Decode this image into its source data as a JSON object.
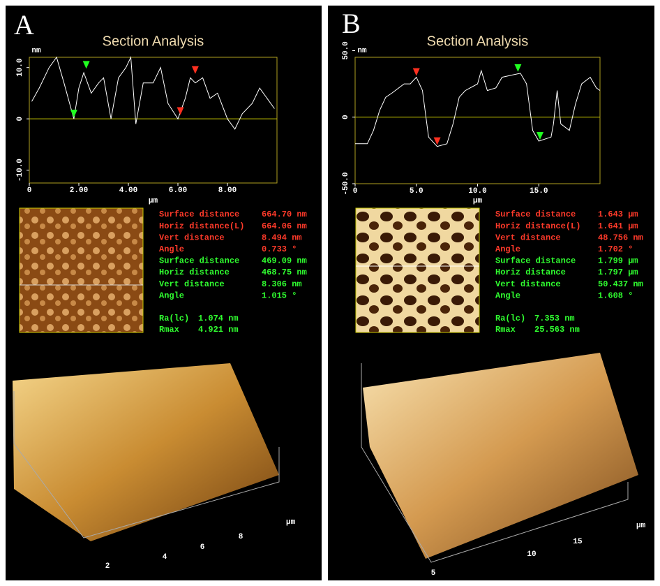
{
  "chart_data": [
    {
      "type": "line",
      "panel_label": "A",
      "title": "Section Analysis",
      "y_label": "nm",
      "x_label": "µm",
      "color": "#ffffff",
      "x": [
        0.1,
        0.4,
        0.8,
        1.1,
        1.4,
        1.8,
        2.0,
        2.2,
        2.5,
        2.8,
        3.0,
        3.3,
        3.6,
        3.9,
        4.1,
        4.3,
        4.6,
        5.0,
        5.3,
        5.6,
        6.0,
        6.3,
        6.5,
        6.7,
        7.0,
        7.3,
        7.6,
        8.0,
        8.3,
        8.6,
        9.0,
        9.3,
        9.6,
        9.9
      ],
      "values": [
        3.4,
        6,
        10,
        12,
        7,
        0,
        6,
        9,
        5,
        7,
        8,
        0,
        8,
        10,
        12,
        -1,
        7,
        7,
        10,
        3,
        0,
        4,
        8,
        7,
        8,
        4,
        5,
        0,
        -2,
        1,
        3,
        6,
        4,
        2
      ],
      "xlim": [
        0,
        10
      ],
      "ylim": [
        -12.5,
        12
      ],
      "xticks": [
        0,
        {
          "value": 2,
          "label": "2.00"
        },
        {
          "value": 4,
          "label": "4.00"
        },
        {
          "value": 6,
          "label": "6.00"
        },
        {
          "value": 8,
          "label": "8.00"
        }
      ],
      "yticks": [
        {
          "value": -10,
          "label": "-10.0"
        },
        0,
        {
          "value": 10,
          "label": "10.0"
        }
      ],
      "cursors": [
        {
          "x": 1.8,
          "y": 0,
          "color": "#20ff20"
        },
        {
          "x": 2.3,
          "y": 9.5,
          "color": "#20ff20"
        },
        {
          "x": 6.1,
          "y": 0.5,
          "color": "#ff3020"
        },
        {
          "x": 6.7,
          "y": 8.5,
          "color": "#ff3020"
        }
      ],
      "measurements": [
        {
          "label": "Surface distance",
          "value": "664.70 nm",
          "color": "#ff3a2a"
        },
        {
          "label": "Horiz distance(L)",
          "value": "664.06 nm",
          "color": "#ff3a2a"
        },
        {
          "label": "Vert distance",
          "value": "8.494 nm",
          "color": "#ff3a2a"
        },
        {
          "label": "Angle",
          "value": "0.733 °",
          "color": "#ff3a2a"
        },
        {
          "label": "Surface distance",
          "value": "469.09 nm",
          "color": "#30ff30"
        },
        {
          "label": "Horiz distance",
          "value": "468.75 nm",
          "color": "#30ff30"
        },
        {
          "label": "Vert distance",
          "value": "8.306 nm",
          "color": "#30ff30"
        },
        {
          "label": "Angle",
          "value": "1.015 °",
          "color": "#30ff30"
        }
      ],
      "roughness": [
        {
          "label": "Ra(lc)",
          "value": "1.074 nm"
        },
        {
          "label": "Rmax",
          "value": "4.921 nm"
        }
      ],
      "surface_ticks": [
        "2",
        "4",
        "6",
        "8"
      ],
      "surface_unit": "µm"
    },
    {
      "type": "line",
      "panel_label": "B",
      "title": "Section Analysis",
      "y_label": "nm",
      "x_label": "µm",
      "color": "#ffffff",
      "x": [
        0,
        1,
        1.5,
        2,
        2.5,
        3,
        4,
        4.5,
        5,
        5.5,
        6,
        6.7,
        7.5,
        8,
        8.5,
        9,
        10,
        10.3,
        10.8,
        11.5,
        12,
        13,
        13.5,
        14,
        14.5,
        15,
        16,
        16.2,
        16.5,
        16.8,
        17.5,
        18,
        18.5,
        19.2,
        19.7,
        20
      ],
      "values": [
        -20,
        -20,
        -10,
        5,
        15,
        18,
        25,
        25,
        30,
        20,
        -15,
        -22,
        -20,
        -5,
        15,
        20,
        25,
        35,
        20,
        22,
        30,
        32,
        33,
        25,
        -10,
        -18,
        -15,
        -5,
        20,
        -5,
        -10,
        10,
        25,
        30,
        22,
        20
      ],
      "xlim": [
        0,
        20
      ],
      "ylim": [
        -50,
        45
      ],
      "xticks": [
        0,
        {
          "value": 5,
          "label": "5.0"
        },
        {
          "value": 10,
          "label": "10.0"
        },
        {
          "value": 15,
          "label": "15.0"
        }
      ],
      "yticks": [
        {
          "value": -50,
          "label": "-50.0"
        },
        0,
        {
          "value": 50,
          "label": "50.0"
        }
      ],
      "cursors": [
        {
          "x": 5.0,
          "y": 30,
          "color": "#ff3020"
        },
        {
          "x": 6.7,
          "y": -22,
          "color": "#ff3020"
        },
        {
          "x": 13.3,
          "y": 33,
          "color": "#20ff20"
        },
        {
          "x": 15.1,
          "y": -18,
          "color": "#20ff20"
        }
      ],
      "measurements": [
        {
          "label": "Surface distance",
          "value": "1.643 µm",
          "color": "#ff3a2a"
        },
        {
          "label": "Horiz distance(L)",
          "value": "1.641 µm",
          "color": "#ff3a2a"
        },
        {
          "label": "Vert distance",
          "value": "48.756 nm",
          "color": "#ff3a2a"
        },
        {
          "label": "Angle",
          "value": "1.702 °",
          "color": "#ff3a2a"
        },
        {
          "label": "Surface distance",
          "value": "1.799 µm",
          "color": "#30ff30"
        },
        {
          "label": "Horiz distance",
          "value": "1.797 µm",
          "color": "#30ff30"
        },
        {
          "label": "Vert distance",
          "value": "50.437 nm",
          "color": "#30ff30"
        },
        {
          "label": "Angle",
          "value": "1.608 °",
          "color": "#30ff30"
        }
      ],
      "roughness": [
        {
          "label": "Ra(lc)",
          "value": "7.353 nm"
        },
        {
          "label": "Rmax",
          "value": "25.563 nm"
        }
      ],
      "surface_ticks": [
        "5",
        "10",
        "15"
      ],
      "surface_unit": "µm"
    }
  ]
}
